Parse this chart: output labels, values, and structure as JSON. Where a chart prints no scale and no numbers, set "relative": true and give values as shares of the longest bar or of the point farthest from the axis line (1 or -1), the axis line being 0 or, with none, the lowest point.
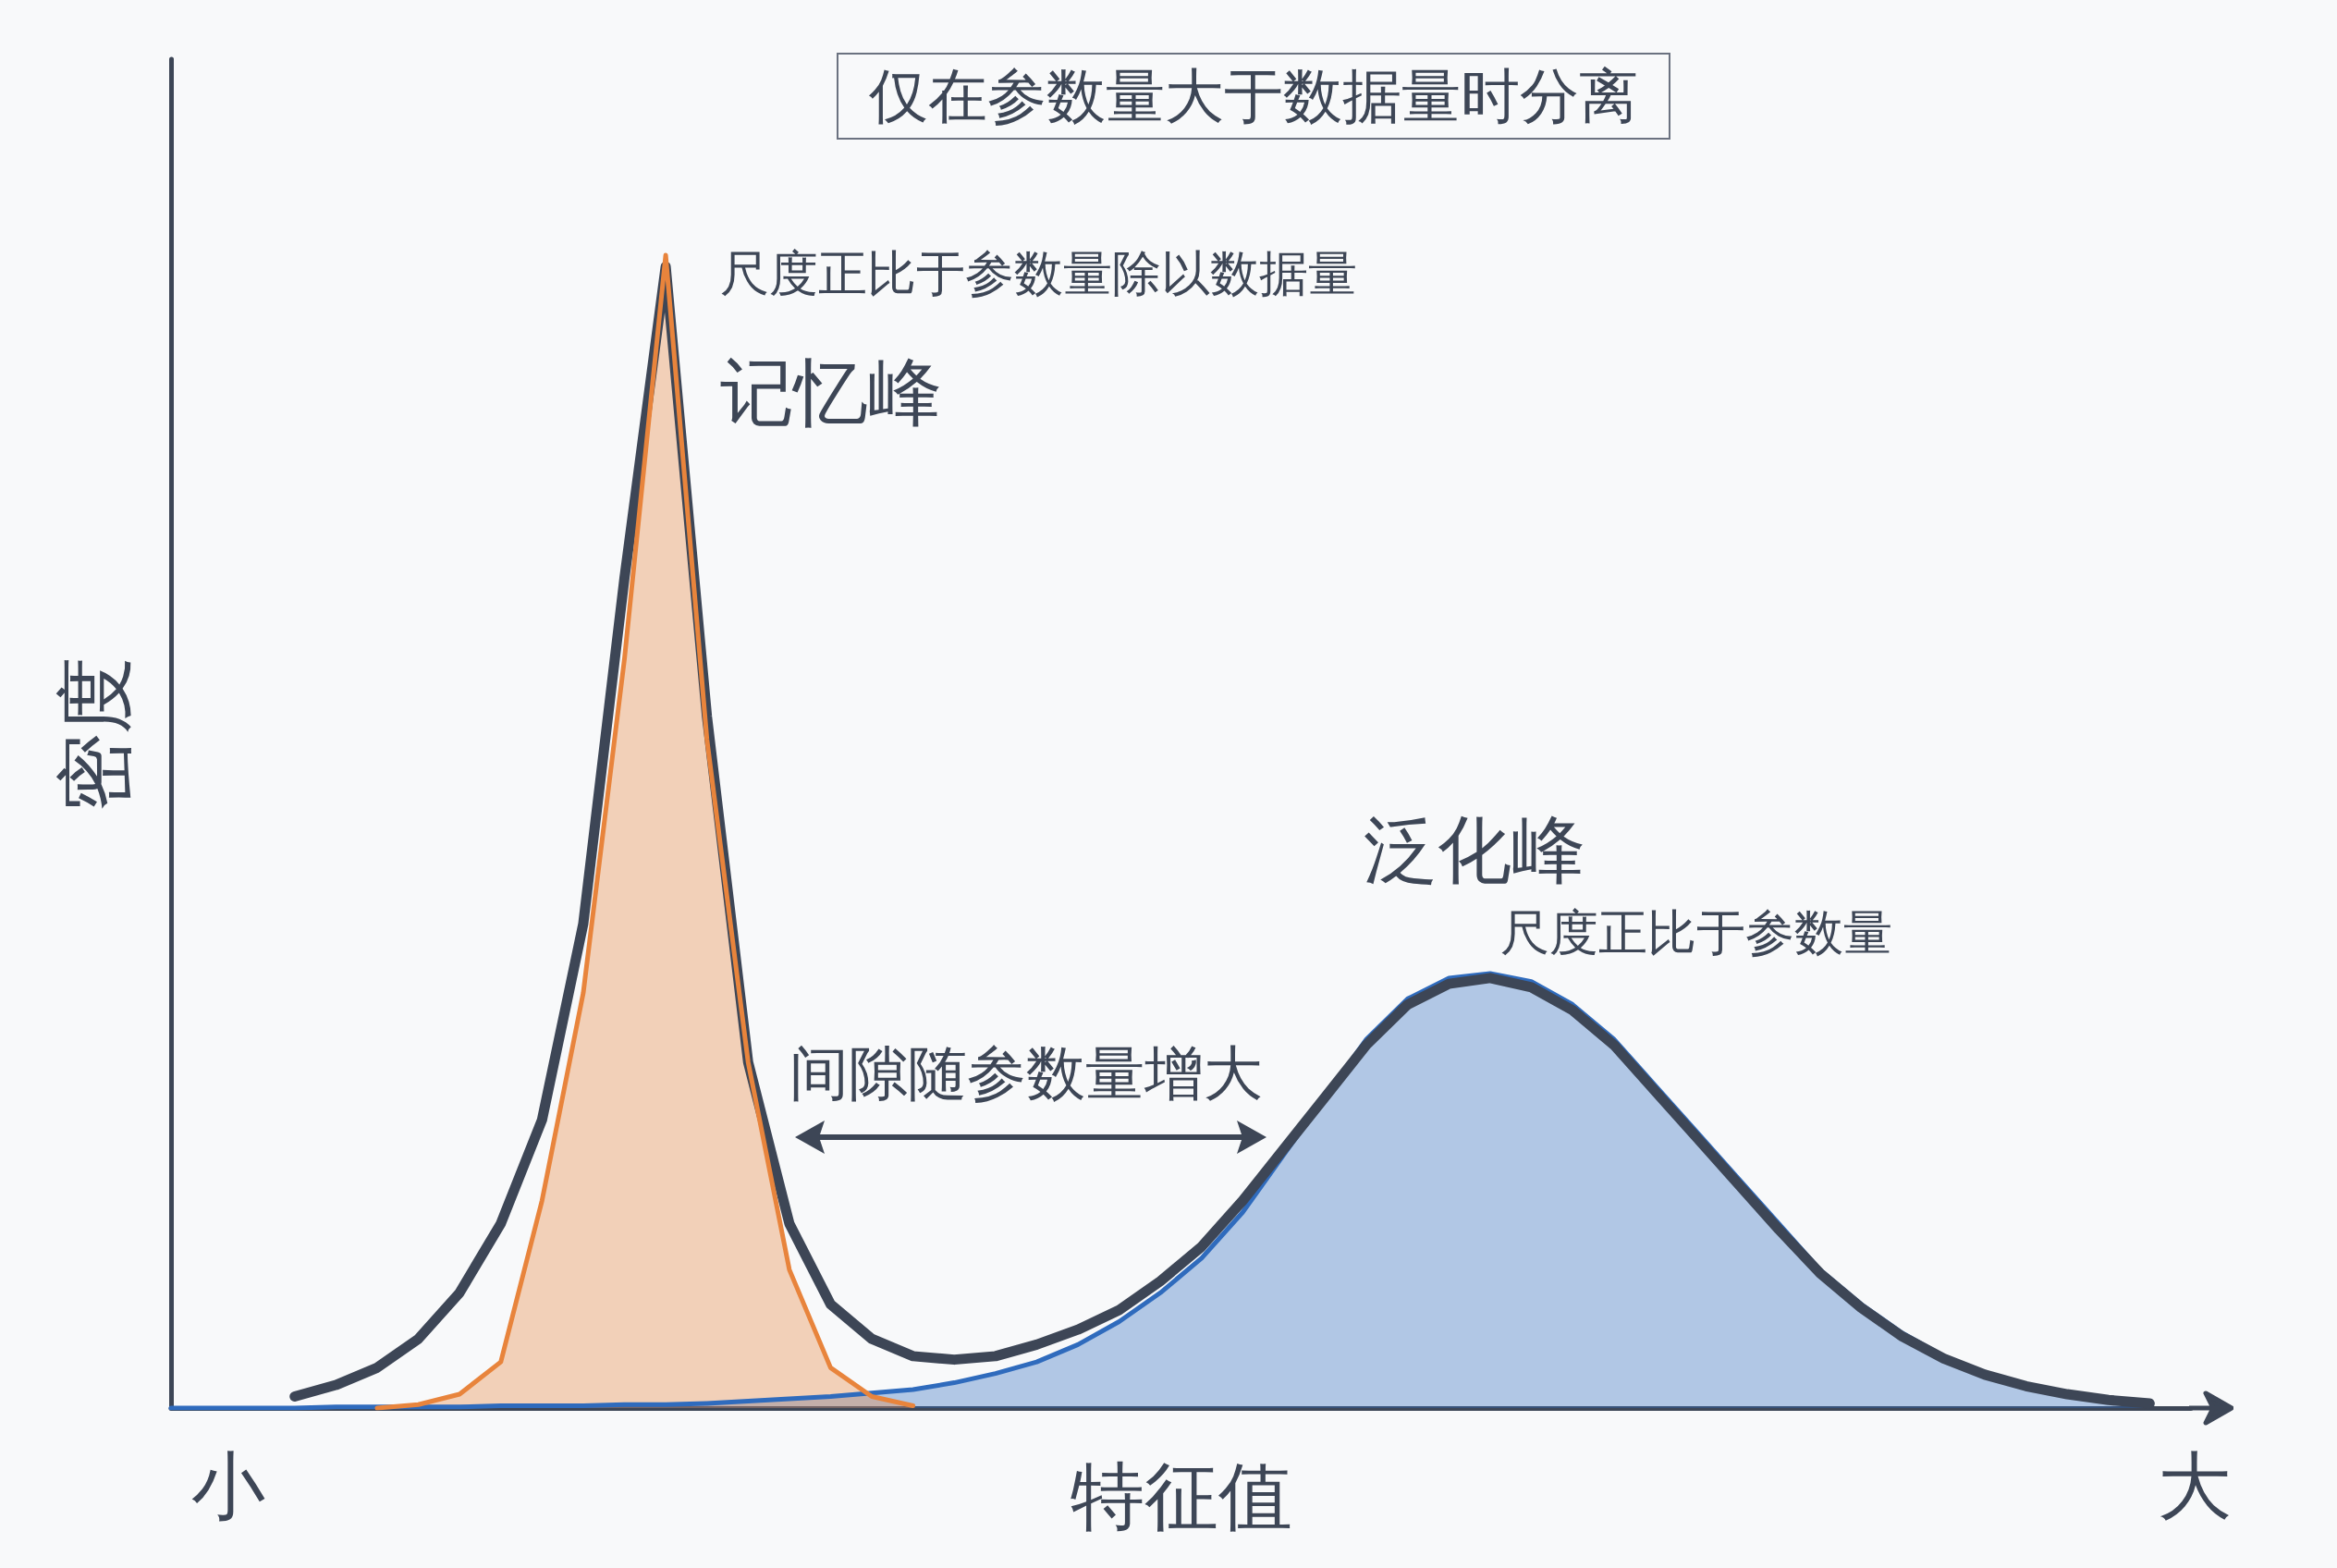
{
  "chart_data": {
    "type": "area",
    "title": "仅在参数量大于数据量时分离",
    "xlabel": "特征值",
    "ylabel": "密度",
    "annotations": [
      "尺度正比于参数量除以数据量",
      "记忆峰",
      "泛化峰",
      "尺度正比于参数量",
      "间隙随参数量增大",
      "小",
      "大"
    ],
    "relative": true,
    "grid": false,
    "legend": false,
    "tick_labels": false,
    "marker": "none",
    "line_style": "solid",
    "categories": [
      null,
      null,
      null,
      null,
      null,
      null,
      null,
      null,
      null,
      null,
      null,
      null,
      null,
      null,
      null,
      null,
      null,
      null,
      null,
      null,
      null,
      null,
      null,
      null,
      null,
      null,
      null,
      null,
      null,
      null,
      null,
      null,
      null,
      null,
      null,
      null,
      null,
      null,
      null,
      null,
      null,
      null,
      null,
      null,
      null,
      null,
      null,
      null,
      null,
      null
    ],
    "series": [
      {
        "type": "area",
        "color": "#2f6bbd",
        "values": [
          0,
          0,
          0,
          0,
          0.001,
          0.001,
          0.001,
          0.001,
          0.002,
          0.002,
          0.002,
          0.003,
          0.003,
          0.004,
          0.006,
          0.008,
          0.01,
          0.013,
          0.016,
          0.022,
          0.03,
          0.04,
          0.055,
          0.075,
          0.1,
          0.13,
          0.17,
          0.22,
          0.27,
          0.32,
          0.355,
          0.373,
          0.377,
          0.37,
          0.35,
          0.32,
          0.28,
          0.24,
          0.2,
          0.16,
          0.12,
          0.09,
          0.065,
          0.045,
          0.03,
          0.02,
          0.013,
          0.008,
          0.005,
          null
        ]
      },
      {
        "type": "line",
        "color": "#3d4656",
        "values": [
          null,
          null,
          null,
          0.01,
          0.02,
          0.035,
          0.06,
          0.1,
          0.16,
          0.25,
          0.42,
          0.72,
          0.99,
          0.6,
          0.3,
          0.16,
          0.09,
          0.06,
          0.045,
          0.042,
          0.045,
          0.055,
          0.068,
          0.085,
          0.11,
          0.14,
          0.18,
          0.225,
          0.27,
          0.315,
          0.35,
          0.368,
          0.373,
          0.365,
          0.345,
          0.315,
          0.275,
          0.235,
          0.195,
          0.155,
          0.117,
          0.087,
          0.062,
          0.043,
          0.029,
          0.019,
          0.012,
          0.007,
          0.004,
          null
        ]
      },
      {
        "type": "area",
        "color": "#e8843c",
        "values": [
          null,
          null,
          null,
          null,
          null,
          0,
          0.003,
          0.012,
          0.04,
          0.18,
          0.36,
          0.65,
          1,
          0.58,
          0.3,
          0.12,
          0.035,
          0.01,
          0.002,
          null,
          null,
          null,
          null,
          null,
          null,
          null,
          null,
          null,
          null,
          null,
          null,
          null,
          null,
          null,
          null,
          null,
          null,
          null,
          null,
          null,
          null,
          null,
          null,
          null,
          null,
          null,
          null,
          null,
          null,
          null
        ]
      }
    ]
  }
}
